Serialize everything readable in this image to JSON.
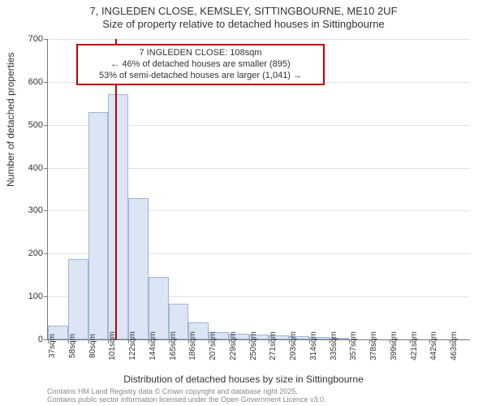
{
  "title": {
    "line1": "7, INGLEDEN CLOSE, KEMSLEY, SITTINGBOURNE, ME10 2UF",
    "line2": "Size of property relative to detached houses in Sittingbourne"
  },
  "chart": {
    "type": "histogram",
    "background_color": "#ffffff",
    "grid_color": "#e3e3e3",
    "axis_color": "#777777",
    "bar_fill": "#dbe5f4",
    "bar_border": "#9fb6d9",
    "bar_width_ratio": 1.0,
    "ylim": [
      0,
      700
    ],
    "ytick_step": 100,
    "ytick_labels": [
      "0",
      "100",
      "200",
      "300",
      "400",
      "500",
      "600",
      "700"
    ],
    "yaxis_title": "Number of detached properties",
    "xaxis_title": "Distribution of detached houses by size in Sittingbourne",
    "label_fontsize": 12,
    "tick_fontsize": 11,
    "categories": [
      "37sqm",
      "58sqm",
      "80sqm",
      "101sqm",
      "122sqm",
      "144sqm",
      "165sqm",
      "186sqm",
      "207sqm",
      "229sqm",
      "250sqm",
      "271sqm",
      "293sqm",
      "314sqm",
      "335sqm",
      "357sqm",
      "378sqm",
      "399sqm",
      "421sqm",
      "442sqm",
      "463sqm"
    ],
    "values": [
      32,
      188,
      530,
      572,
      330,
      145,
      84,
      40,
      18,
      14,
      12,
      10,
      8,
      5,
      3,
      0,
      0,
      0,
      0,
      0,
      0
    ],
    "marker": {
      "position_value_sqm": 108,
      "color": "#c00000",
      "box_bg": "#ffffff",
      "line1": "7 INGLEDEN CLOSE: 108sqm",
      "line2": "← 46% of detached houses are smaller (895)",
      "line3": "53% of semi-detached houses are larger (1,041) →"
    }
  },
  "footnote": {
    "line1": "Contains HM Land Registry data © Crown copyright and database right 2025.",
    "line2": "Contains public sector information licensed under the Open Government Licence v3.0."
  }
}
